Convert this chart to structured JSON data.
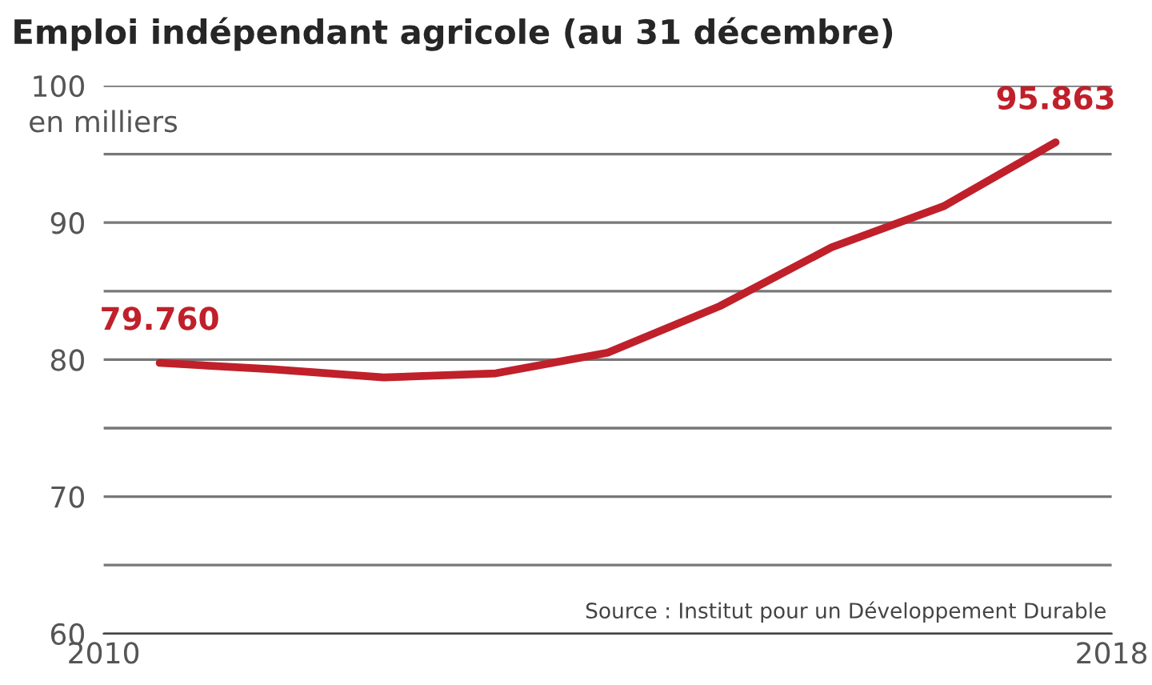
{
  "chart_data": {
    "type": "line",
    "title": "Emploi indépendant agricole (au 31 décembre)",
    "ylabel": "en milliers",
    "x": [
      2010,
      2011,
      2012,
      2013,
      2014,
      2015,
      2016,
      2017,
      2018
    ],
    "series": [
      {
        "color": "#c0202a",
        "values": [
          79.76,
          79.3,
          78.7,
          79.0,
          80.5,
          83.9,
          88.2,
          91.2,
          95.863
        ],
        "value_labels": [
          "79.760",
          null,
          null,
          null,
          null,
          null,
          null,
          null,
          "95.863"
        ]
      }
    ],
    "xlim": [
      2009.5,
      2018.5
    ],
    "xticks": [
      {
        "value": 2009.5,
        "label": "2010"
      },
      {
        "value": 2018.5,
        "label": "2018"
      }
    ],
    "ylim": [
      60,
      100
    ],
    "yticks": [
      60,
      {
        "value": 65,
        "label": null
      },
      70,
      {
        "value": 75,
        "label": null
      },
      80,
      {
        "value": 85,
        "label": null
      },
      90,
      {
        "value": 95,
        "label": null
      },
      100
    ],
    "grid": "y",
    "marker": "none",
    "line_style": "solid",
    "annotations": [
      "Source : Institut pour un Développement Durable"
    ]
  }
}
